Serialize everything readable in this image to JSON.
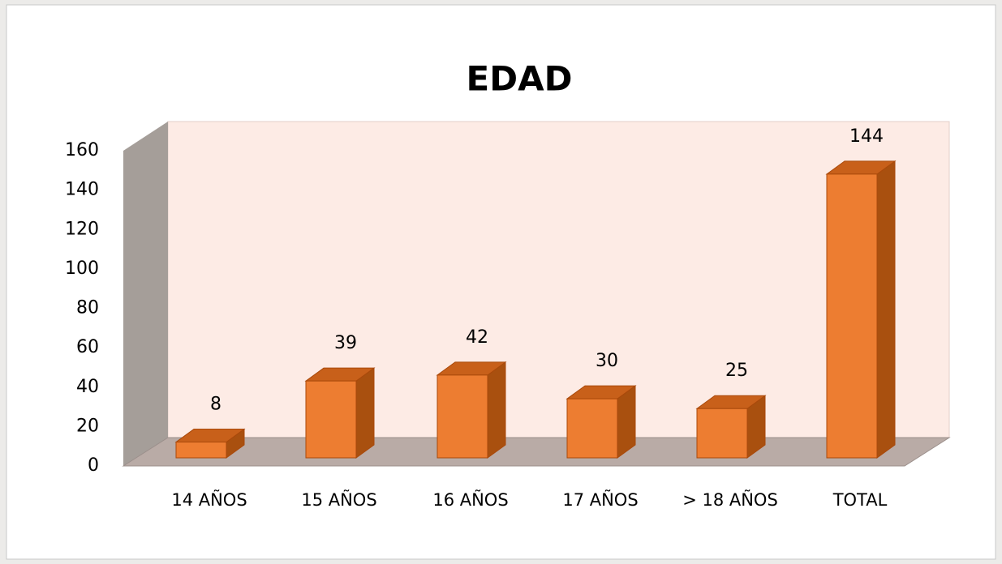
{
  "chart_data": {
    "type": "bar3d",
    "title": "EDAD",
    "categories": [
      "14 AÑOS",
      "15 AÑOS",
      "16 AÑOS",
      "17 AÑOS",
      "> 18 AÑOS",
      "TOTAL"
    ],
    "values": [
      8,
      39,
      42,
      30,
      25,
      144
    ],
    "color": "#ed7d31",
    "ylim": [
      0,
      160
    ],
    "yticks": [
      0,
      20,
      40,
      60,
      80,
      100,
      120,
      140,
      160
    ],
    "grid": false,
    "data_labels": true
  }
}
